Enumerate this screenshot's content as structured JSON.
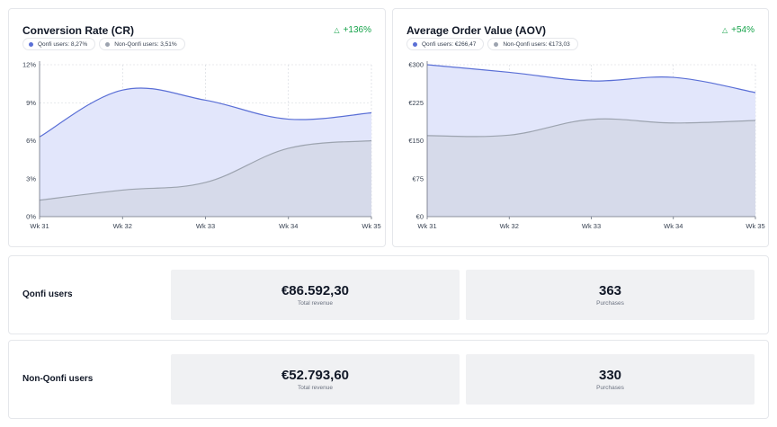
{
  "colors": {
    "qonfi": "#5a6fd6",
    "qonfi_fill": "#e2e6fb",
    "nonqonfi": "#9ca3af",
    "nonqonfi_fill": "#d3d7e6",
    "positive": "#16a34a",
    "grid": "#d1d5db"
  },
  "cr": {
    "title": "Conversion Rate (CR)",
    "delta": "+136%",
    "delta_icon": "triangle-up-outline-icon",
    "legend_qonfi": "Qonfi users: 8,27%",
    "legend_non": "Non-Qonfi users: 3,51%"
  },
  "aov": {
    "title": "Average Order Value (AOV)",
    "delta": "+54%",
    "delta_icon": "triangle-up-outline-icon",
    "legend_qonfi": "Qonfi users: €266,47",
    "legend_non": "Non-Qonfi users: €173,03"
  },
  "chart_data": [
    {
      "type": "area",
      "title": "Conversion Rate (CR)",
      "x": [
        "Wk 31",
        "Wk 32",
        "Wk 33",
        "Wk 34",
        "Wk 35"
      ],
      "y_ticks": [
        "0%",
        "3%",
        "6%",
        "9%",
        "12%"
      ],
      "ylim": [
        0,
        12
      ],
      "grid": true,
      "series": [
        {
          "name": "Qonfi users",
          "values": [
            6.3,
            10.0,
            9.2,
            7.7,
            8.2
          ]
        },
        {
          "name": "Non-Qonfi users",
          "values": [
            1.3,
            2.1,
            2.7,
            5.4,
            6.0
          ]
        }
      ]
    },
    {
      "type": "area",
      "title": "Average Order Value (AOV)",
      "x": [
        "Wk 31",
        "Wk 32",
        "Wk 33",
        "Wk 34",
        "Wk 35"
      ],
      "y_ticks": [
        "€0",
        "€75",
        "€150",
        "€225",
        "€300"
      ],
      "ylim": [
        0,
        300
      ],
      "grid": true,
      "series": [
        {
          "name": "Qonfi users",
          "values": [
            300,
            285,
            268,
            275,
            245
          ]
        },
        {
          "name": "Non-Qonfi users",
          "values": [
            160,
            161,
            192,
            185,
            190
          ]
        }
      ]
    }
  ],
  "qonfi_row": {
    "label": "Qonfi users",
    "revenue": "€86.592,30",
    "revenue_label": "Total revenue",
    "purchases": "363",
    "purchases_label": "Purchases"
  },
  "non_row": {
    "label": "Non-Qonfi users",
    "revenue": "€52.793,60",
    "revenue_label": "Total revenue",
    "purchases": "330",
    "purchases_label": "Purchases"
  }
}
